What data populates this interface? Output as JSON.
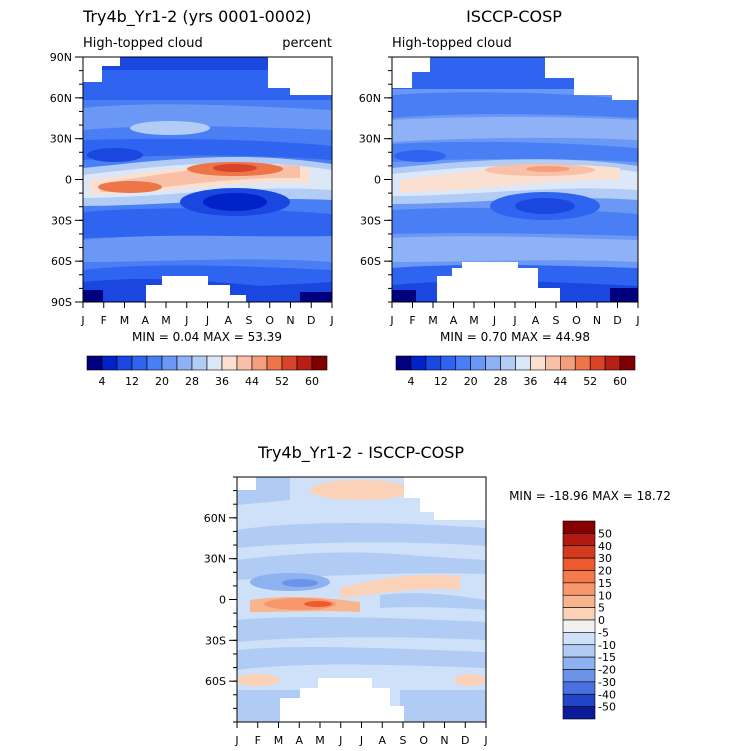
{
  "chart_data": [
    {
      "type": "heatmap",
      "title": "Try4b_Yr1-2 (yrs 0001-0002)",
      "subtitle_left": "High-topped cloud",
      "subtitle_right": "percent",
      "x_ticks": [
        "J",
        "F",
        "M",
        "A",
        "M",
        "J",
        "J",
        "A",
        "S",
        "O",
        "N",
        "D",
        "J"
      ],
      "y_ticks": [
        "90N",
        "60N",
        "30N",
        "0",
        "30S",
        "60S",
        "90S"
      ],
      "y_values": [
        90,
        60,
        30,
        0,
        -30,
        -60,
        -90
      ],
      "ylim": [
        -90,
        90
      ],
      "stats": "MIN =    0.04  MAX =   53.39",
      "min": 0.04,
      "max": 53.39,
      "colorbar": {
        "levels": [
          4,
          8,
          12,
          16,
          20,
          24,
          28,
          32,
          36,
          40,
          44,
          48,
          52,
          56,
          60
        ],
        "labels": [
          "4",
          "12",
          "20",
          "28",
          "36",
          "44",
          "52",
          "60"
        ],
        "colors": [
          "#00007f",
          "#0022c8",
          "#1a47e0",
          "#2e64f0",
          "#4a7ef5",
          "#6c98f5",
          "#8eb2f5",
          "#b2ccf5",
          "#dce8f8",
          "#fbe0d2",
          "#f8c0a6",
          "#f59e7c",
          "#ee7548",
          "#d8442a",
          "#b81f14",
          "#7e0000"
        ]
      }
    },
    {
      "type": "heatmap",
      "title": "ISCCP-COSP",
      "subtitle_left": "High-topped cloud",
      "x_ticks": [
        "J",
        "F",
        "M",
        "A",
        "M",
        "J",
        "J",
        "A",
        "S",
        "O",
        "N",
        "D",
        "J"
      ],
      "y_ticks": [
        "60N",
        "30N",
        "0",
        "30S",
        "60S"
      ],
      "y_values": [
        60,
        30,
        0,
        -30,
        -60
      ],
      "ylim": [
        -90,
        90
      ],
      "stats": "MIN =    0.70  MAX =   44.98",
      "min": 0.7,
      "max": 44.98,
      "colorbar": {
        "levels": [
          4,
          8,
          12,
          16,
          20,
          24,
          28,
          32,
          36,
          40,
          44,
          48,
          52,
          56,
          60
        ],
        "labels": [
          "4",
          "12",
          "20",
          "28",
          "36",
          "44",
          "52",
          "60"
        ],
        "colors": [
          "#00007f",
          "#0022c8",
          "#1a47e0",
          "#2e64f0",
          "#4a7ef5",
          "#6c98f5",
          "#8eb2f5",
          "#b2ccf5",
          "#dce8f8",
          "#fbe0d2",
          "#f8c0a6",
          "#f59e7c",
          "#ee7548",
          "#d8442a",
          "#b81f14",
          "#7e0000"
        ]
      }
    },
    {
      "type": "heatmap",
      "title": "Try4b_Yr1-2 - ISCCP-COSP",
      "x_ticks": [
        "J",
        "F",
        "M",
        "A",
        "M",
        "J",
        "J",
        "A",
        "S",
        "O",
        "N",
        "D",
        "J"
      ],
      "y_ticks": [
        "60N",
        "30N",
        "0",
        "30S",
        "60S"
      ],
      "y_values": [
        60,
        30,
        0,
        -30,
        -60
      ],
      "ylim": [
        -90,
        90
      ],
      "stats": "MIN =  -18.96  MAX =   18.72",
      "min": -18.96,
      "max": 18.72,
      "colorbar": {
        "labels": [
          "50",
          "40",
          "30",
          "20",
          "15",
          "10",
          "5",
          "0",
          "-5",
          "-10",
          "-15",
          "-20",
          "-30",
          "-40",
          "-50"
        ],
        "colors": [
          "#870000",
          "#b01a10",
          "#d33a1e",
          "#ee5a30",
          "#f47a4c",
          "#f7986c",
          "#f8b48c",
          "#fbd2b8",
          "#f2f1f2",
          "#cfe1f8",
          "#b0cbf4",
          "#8eb1f0",
          "#6b93ea",
          "#4a6fe0",
          "#2244c8",
          "#0a1a9a"
        ]
      }
    }
  ]
}
